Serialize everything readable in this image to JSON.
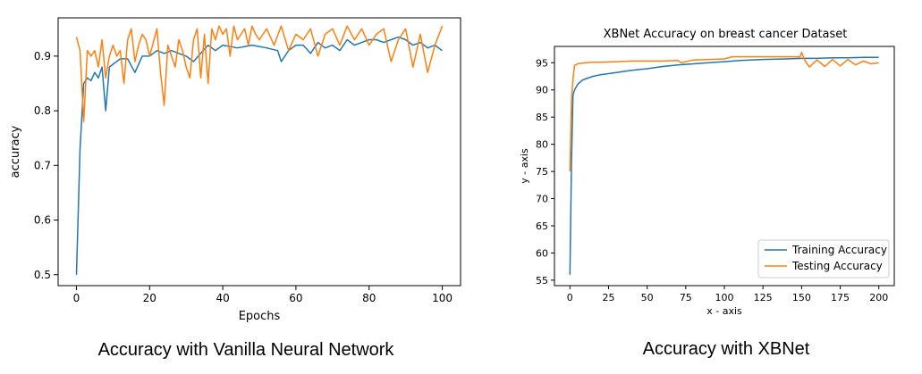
{
  "captions": {
    "left": "Accuracy with Vanilla Neural Network",
    "right": "Accuracy with XBNet"
  },
  "colors": {
    "blue": "#1f77b4",
    "orange": "#ff7f0e"
  },
  "chart_data": [
    {
      "type": "line",
      "title": "",
      "xlabel": "Epochs",
      "ylabel": "accuracy",
      "xlim": [
        -5,
        105
      ],
      "ylim": [
        0.48,
        0.97
      ],
      "xticks": [
        0,
        20,
        40,
        60,
        80,
        100
      ],
      "yticks": [
        0.5,
        0.6,
        0.7,
        0.8,
        0.9
      ],
      "ytick_labels": [
        "0.5",
        "0.6",
        "0.7",
        "0.8",
        "0.9"
      ],
      "grid": false,
      "legend": "none",
      "series": [
        {
          "color": "#1f77b4",
          "x": [
            0,
            1,
            2,
            3,
            4,
            5,
            6,
            7,
            8,
            9,
            10,
            12,
            14,
            16,
            18,
            20,
            22,
            24,
            26,
            28,
            30,
            32,
            34,
            36,
            38,
            40,
            44,
            48,
            52,
            55,
            56,
            58,
            60,
            62,
            64,
            66,
            68,
            70,
            72,
            74,
            76,
            78,
            80,
            82,
            84,
            86,
            88,
            90,
            92,
            94,
            96,
            98,
            100
          ],
          "values": [
            0.5,
            0.73,
            0.85,
            0.86,
            0.855,
            0.87,
            0.86,
            0.88,
            0.8,
            0.88,
            0.885,
            0.895,
            0.895,
            0.87,
            0.9,
            0.9,
            0.91,
            0.905,
            0.91,
            0.905,
            0.9,
            0.89,
            0.905,
            0.92,
            0.91,
            0.92,
            0.915,
            0.92,
            0.915,
            0.91,
            0.89,
            0.91,
            0.92,
            0.92,
            0.905,
            0.925,
            0.915,
            0.92,
            0.91,
            0.93,
            0.92,
            0.925,
            0.93,
            0.93,
            0.925,
            0.93,
            0.935,
            0.93,
            0.92,
            0.925,
            0.915,
            0.92,
            0.91
          ]
        },
        {
          "color": "#ff7f0e",
          "x": [
            0,
            1,
            2,
            3,
            4,
            5,
            6,
            7,
            8,
            9,
            10,
            11,
            12,
            13,
            14,
            15,
            16,
            17,
            18,
            19,
            20,
            21,
            22,
            23,
            24,
            25,
            26,
            27,
            28,
            29,
            30,
            31,
            32,
            33,
            34,
            35,
            36,
            37,
            38,
            39,
            40,
            41,
            42,
            43,
            44,
            45,
            46,
            47,
            48,
            49,
            50,
            52,
            54,
            56,
            58,
            60,
            62,
            64,
            66,
            68,
            70,
            72,
            74,
            76,
            78,
            80,
            82,
            84,
            86,
            88,
            90,
            92,
            94,
            96,
            98,
            100
          ],
          "values": [
            0.935,
            0.91,
            0.78,
            0.91,
            0.9,
            0.91,
            0.88,
            0.93,
            0.86,
            0.9,
            0.92,
            0.9,
            0.91,
            0.85,
            0.93,
            0.95,
            0.89,
            0.92,
            0.94,
            0.93,
            0.9,
            0.925,
            0.95,
            0.87,
            0.81,
            0.92,
            0.9,
            0.88,
            0.93,
            0.91,
            0.88,
            0.86,
            0.93,
            0.95,
            0.86,
            0.94,
            0.85,
            0.95,
            0.93,
            0.955,
            0.94,
            0.95,
            0.9,
            0.955,
            0.93,
            0.94,
            0.95,
            0.92,
            0.955,
            0.94,
            0.93,
            0.95,
            0.92,
            0.955,
            0.91,
            0.94,
            0.93,
            0.95,
            0.9,
            0.94,
            0.95,
            0.92,
            0.955,
            0.93,
            0.95,
            0.92,
            0.94,
            0.95,
            0.89,
            0.93,
            0.95,
            0.88,
            0.94,
            0.87,
            0.92,
            0.955
          ]
        }
      ]
    },
    {
      "type": "line",
      "title": "XBNet Accuracy on breast cancer Dataset",
      "xlabel": "x - axis",
      "ylabel": "y - axis",
      "xlim": [
        -10,
        210
      ],
      "ylim": [
        54,
        98
      ],
      "xticks": [
        0,
        25,
        50,
        75,
        100,
        125,
        150,
        175,
        200
      ],
      "yticks": [
        55,
        60,
        65,
        70,
        75,
        80,
        85,
        90,
        95
      ],
      "grid": false,
      "legend": "lower-right",
      "series": [
        {
          "name": "Training Accuracy",
          "color": "#1f77b4",
          "x": [
            0,
            1,
            2,
            3,
            5,
            8,
            10,
            15,
            20,
            30,
            40,
            50,
            60,
            70,
            80,
            90,
            100,
            110,
            125,
            140,
            150,
            160,
            170,
            180,
            190,
            200
          ],
          "values": [
            56,
            76,
            89,
            90,
            91,
            91.8,
            92,
            92.5,
            92.8,
            93.2,
            93.6,
            93.9,
            94.3,
            94.6,
            94.8,
            95.0,
            95.2,
            95.4,
            95.6,
            95.7,
            95.8,
            95.8,
            95.9,
            95.9,
            96.0,
            96.0
          ]
        },
        {
          "name": "Testing Accuracy",
          "color": "#ff7f0e",
          "x": [
            0,
            1,
            2,
            3,
            5,
            10,
            15,
            20,
            30,
            40,
            50,
            60,
            70,
            72,
            80,
            90,
            100,
            105,
            120,
            140,
            149,
            150,
            152,
            155,
            160,
            165,
            170,
            175,
            180,
            185,
            190,
            195,
            200
          ],
          "values": [
            75,
            88,
            92,
            94.5,
            94.8,
            95.0,
            95.1,
            95.1,
            95.2,
            95.3,
            95.3,
            95.3,
            95.4,
            95.0,
            95.5,
            95.6,
            95.7,
            96.1,
            96.1,
            96.1,
            96.1,
            96.9,
            95.5,
            94.2,
            95.5,
            94.3,
            95.6,
            94.4,
            95.6,
            94.6,
            95.3,
            94.8,
            95.0
          ]
        }
      ]
    }
  ]
}
